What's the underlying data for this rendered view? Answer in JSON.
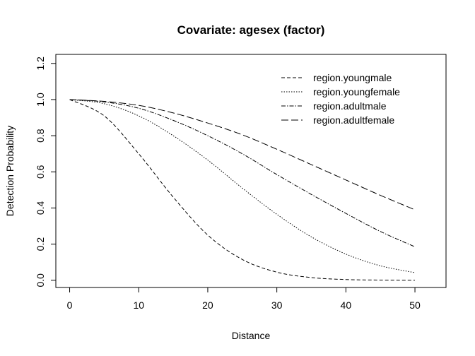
{
  "chart_data": {
    "type": "line",
    "title": "Covariate: agesex (factor)",
    "xlabel": "Distance",
    "ylabel": "Detection Probability",
    "xlim": [
      -2,
      54.5
    ],
    "ylim": [
      -0.04,
      1.25
    ],
    "xticks": [
      0,
      10,
      20,
      30,
      40,
      50
    ],
    "yticks": [
      0.0,
      0.2,
      0.4,
      0.6,
      0.8,
      1.0,
      1.2
    ],
    "xtick_labels": [
      "0",
      "10",
      "20",
      "30",
      "40",
      "50"
    ],
    "ytick_labels": [
      "0.0",
      "0.2",
      "0.4",
      "0.6",
      "0.8",
      "1.0",
      "1.2"
    ],
    "grid": false,
    "legend_position": "top-right",
    "x": [
      0,
      5,
      10,
      15,
      20,
      25,
      30,
      35,
      40,
      45,
      50
    ],
    "series": [
      {
        "name": "region.youngmale",
        "dash": "5,3",
        "values": [
          1.0,
          0.91,
          0.7,
          0.46,
          0.25,
          0.115,
          0.045,
          0.015,
          0.004,
          0.001,
          0.0
        ]
      },
      {
        "name": "region.youngfemale",
        "dash": "1.5,2",
        "values": [
          1.0,
          0.977,
          0.91,
          0.8,
          0.665,
          0.51,
          0.365,
          0.24,
          0.145,
          0.08,
          0.042
        ]
      },
      {
        "name": "region.adultmale",
        "dash": "6,2,1.5,2",
        "values": [
          1.0,
          0.987,
          0.952,
          0.885,
          0.8,
          0.7,
          0.585,
          0.475,
          0.37,
          0.27,
          0.185
        ]
      },
      {
        "name": "region.adultfemale",
        "dash": "10,4",
        "values": [
          1.0,
          0.99,
          0.968,
          0.926,
          0.87,
          0.805,
          0.725,
          0.64,
          0.555,
          0.47,
          0.39
        ]
      }
    ]
  }
}
